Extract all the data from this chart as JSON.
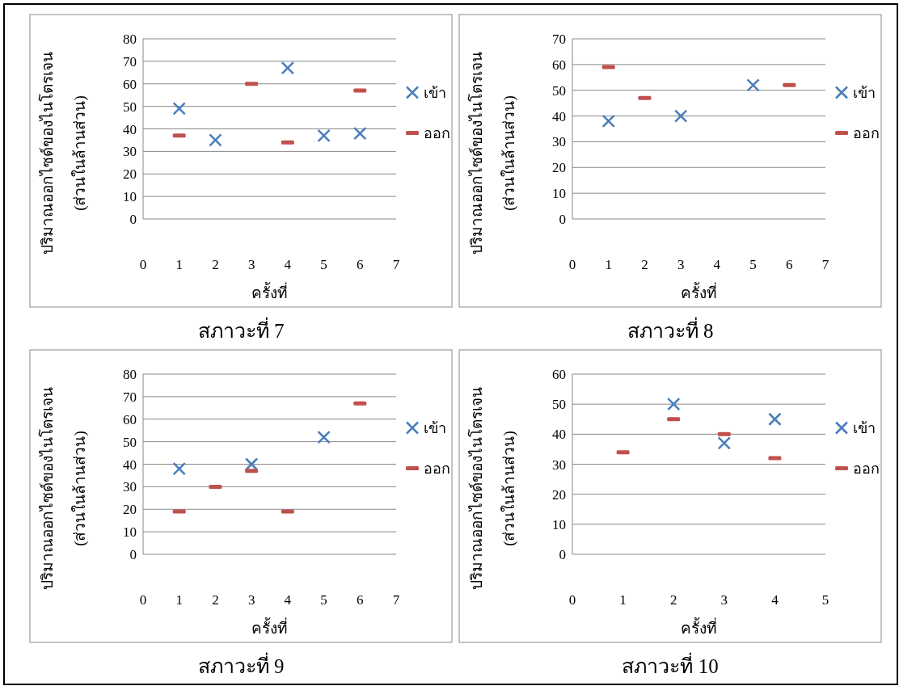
{
  "chart_data": [
    {
      "type": "scatter",
      "title": "สภาวะที่ 7",
      "xlabel": "ครั้งที่",
      "ylabel": "ปริมาณออกไซด์ของไนโตรเจน\n(ส่วนในล้านส่วน)",
      "xlim": [
        0,
        7
      ],
      "xticks": [
        0,
        1,
        2,
        3,
        4,
        5,
        6,
        7
      ],
      "ylim": [
        0,
        80
      ],
      "yticks": [
        0,
        10,
        20,
        30,
        40,
        50,
        60,
        70,
        80
      ],
      "grid": "y",
      "legend": "right",
      "series": [
        {
          "name": "เข้า",
          "color": "#4a7ebb",
          "marker": "cross",
          "x": [
            1,
            2,
            4,
            5,
            6
          ],
          "values": [
            49,
            35,
            67,
            37,
            38
          ]
        },
        {
          "name": "ออก",
          "color": "#c0504d",
          "marker": "square",
          "x": [
            1,
            3,
            4,
            6
          ],
          "values": [
            37,
            60,
            34,
            57
          ]
        }
      ]
    },
    {
      "type": "scatter",
      "title": "สภาวะที่ 8",
      "xlabel": "ครั้งที่",
      "ylabel": "ปริมาณออกไซด์ของไนโตรเจน\n(ส่วนในล้านส่วน)",
      "xlim": [
        0,
        7
      ],
      "xticks": [
        0,
        1,
        2,
        3,
        4,
        5,
        6,
        7
      ],
      "ylim": [
        0,
        70
      ],
      "yticks": [
        0,
        10,
        20,
        30,
        40,
        50,
        60,
        70
      ],
      "grid": "y",
      "legend": "right",
      "series": [
        {
          "name": "เข้า",
          "color": "#4a7ebb",
          "marker": "cross",
          "x": [
            1,
            3,
            5
          ],
          "values": [
            38,
            40,
            52
          ]
        },
        {
          "name": "ออก",
          "color": "#c0504d",
          "marker": "square",
          "x": [
            1,
            2,
            6
          ],
          "values": [
            59,
            47,
            52
          ]
        }
      ]
    },
    {
      "type": "scatter",
      "title": "สภาวะที่ 9",
      "xlabel": "ครั้งที่",
      "ylabel": "ปริมาณออกไซด์ของไนโตรเจน\n(ส่วนในล้านส่วน)",
      "xlim": [
        0,
        7
      ],
      "xticks": [
        0,
        1,
        2,
        3,
        4,
        5,
        6,
        7
      ],
      "ylim": [
        0,
        80
      ],
      "yticks": [
        0,
        10,
        20,
        30,
        40,
        50,
        60,
        70,
        80
      ],
      "grid": "y",
      "legend": "right",
      "series": [
        {
          "name": "เข้า",
          "color": "#4a7ebb",
          "marker": "cross",
          "x": [
            1,
            3,
            5
          ],
          "values": [
            38,
            40,
            52
          ]
        },
        {
          "name": "ออก",
          "color": "#c0504d",
          "marker": "square",
          "x": [
            1,
            2,
            3,
            4,
            6
          ],
          "values": [
            19,
            30,
            37,
            19,
            67
          ]
        }
      ]
    },
    {
      "type": "scatter",
      "title": "สภาวะที่ 10",
      "xlabel": "ครั้งที่",
      "ylabel": "ปริมาณออกไซด์ของไนโตรเจน\n(ส่วนในล้านส่วน)",
      "xlim": [
        0,
        5
      ],
      "xticks": [
        0,
        1,
        2,
        3,
        4,
        5
      ],
      "ylim": [
        0,
        60
      ],
      "yticks": [
        0,
        10,
        20,
        30,
        40,
        50,
        60
      ],
      "grid": "y",
      "legend": "right",
      "series": [
        {
          "name": "เข้า",
          "color": "#4a7ebb",
          "marker": "cross",
          "x": [
            2,
            3,
            4
          ],
          "values": [
            50,
            37,
            45
          ]
        },
        {
          "name": "ออก",
          "color": "#c0504d",
          "marker": "square",
          "x": [
            1,
            2,
            3,
            4
          ],
          "values": [
            34,
            45,
            40,
            32
          ]
        }
      ]
    }
  ]
}
